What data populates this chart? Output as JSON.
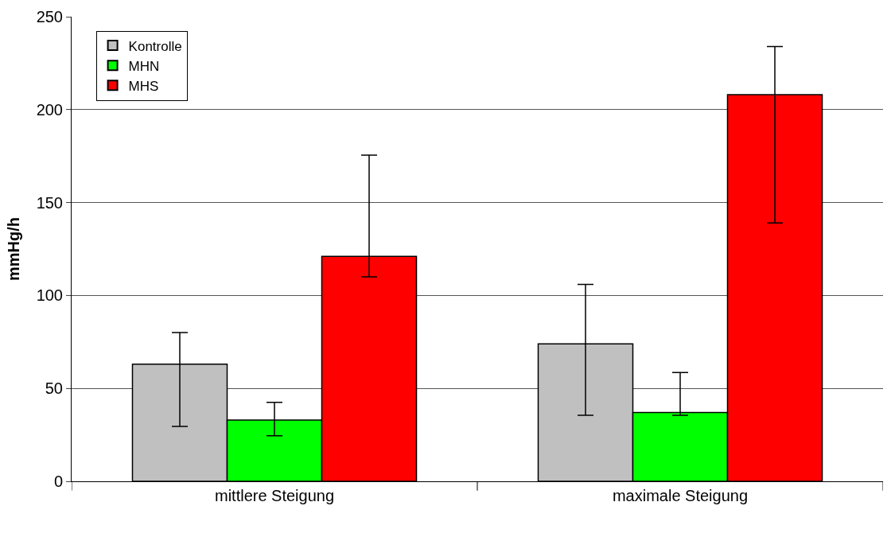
{
  "chart_data": {
    "type": "bar",
    "ylabel": "mmHg/h",
    "categories": [
      "mittlere Steigung",
      "maximale Steigung"
    ],
    "series": [
      {
        "name": "Kontrolle",
        "color": "#c0c0c0",
        "values": [
          63,
          74
        ],
        "errors": [
          [
            29.5,
            80
          ],
          [
            35.5,
            106
          ]
        ]
      },
      {
        "name": "MHN",
        "color": "#00ff00",
        "values": [
          33,
          37
        ],
        "errors": [
          [
            24.5,
            42.5
          ],
          [
            35.5,
            58.5
          ]
        ]
      },
      {
        "name": "MHS",
        "color": "#ff0000",
        "values": [
          121,
          208
        ],
        "errors": [
          [
            110,
            175.5
          ],
          [
            139,
            234
          ]
        ]
      }
    ],
    "ylim": [
      0,
      250
    ],
    "yticks": [
      0,
      50,
      100,
      150,
      200,
      250
    ],
    "grid": "y",
    "legend": "top left"
  }
}
